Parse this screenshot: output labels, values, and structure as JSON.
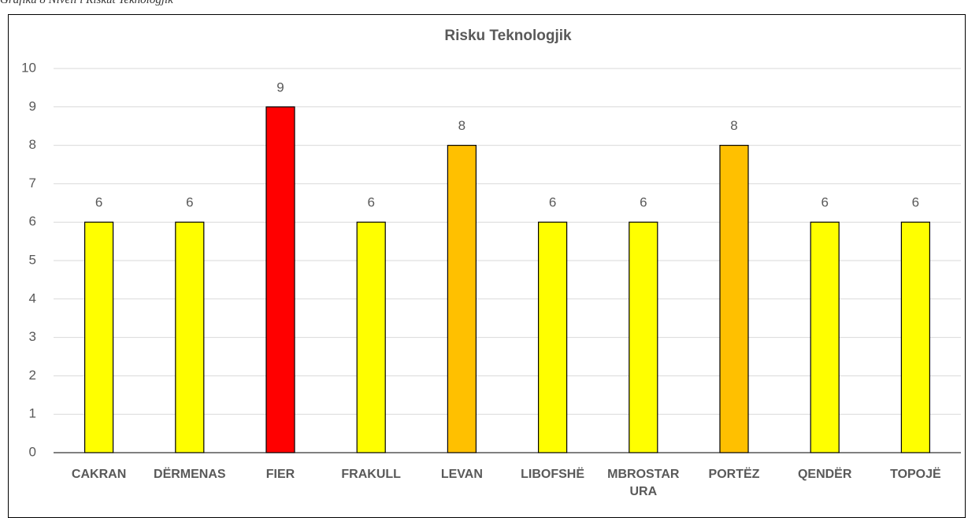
{
  "caption": "Grafiku 8 Niveli i Riskut Teknologjik",
  "chart_data": {
    "type": "bar",
    "title": "Risku Teknologjik",
    "categories": [
      "CAKRAN",
      "DËRMENAS",
      "FIER",
      "FRAKULL",
      "LEVAN",
      "LIBOFSHË",
      "MBROSTAR URA",
      "PORTËZ",
      "QENDËR",
      "TOPOJË"
    ],
    "values": [
      6,
      6,
      9,
      6,
      8,
      6,
      6,
      8,
      6,
      6
    ],
    "colors": [
      "#ffff00",
      "#ffff00",
      "#ff0000",
      "#ffff00",
      "#ffc000",
      "#ffff00",
      "#ffff00",
      "#ffc000",
      "#ffff00",
      "#ffff00"
    ],
    "ylim": [
      0,
      10
    ],
    "yticks": [
      0,
      1,
      2,
      3,
      4,
      5,
      6,
      7,
      8,
      9,
      10
    ],
    "grid": true
  }
}
